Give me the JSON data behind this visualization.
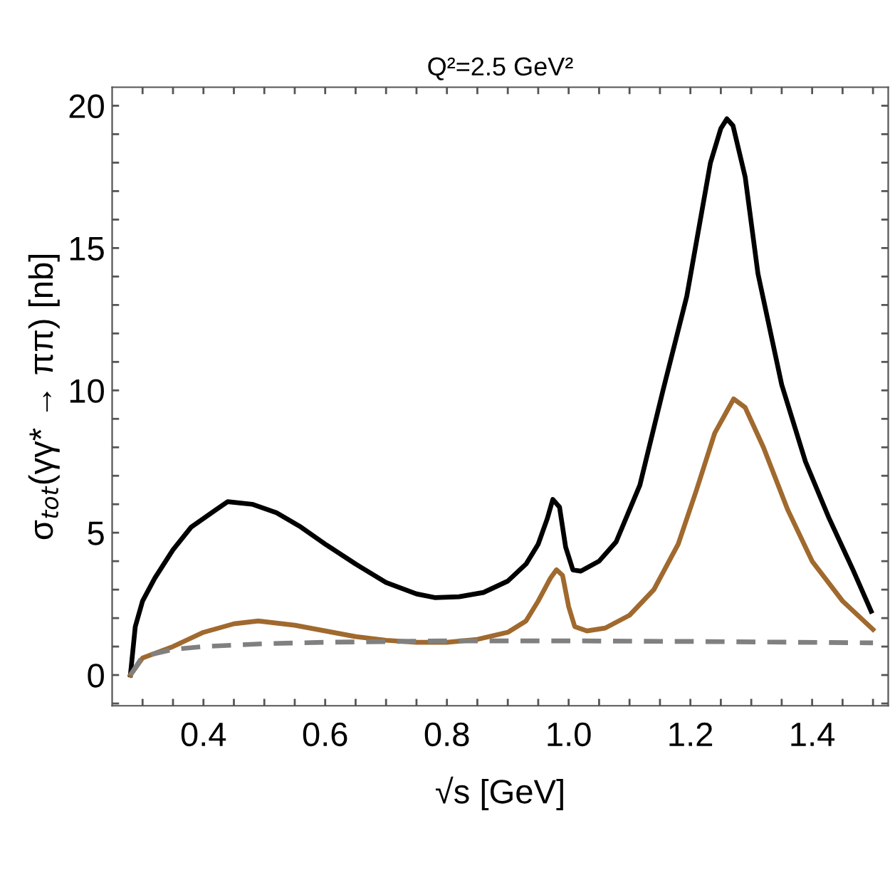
{
  "chart_data": {
    "type": "line",
    "title": "Q²=2.5 GeV²",
    "xlabel": "√s [GeV]",
    "ylabel": "σ$_{tot}$(γγ* → ππ) [nb]",
    "xlim": [
      0.25,
      1.525
    ],
    "ylim": [
      -1.08,
      20.65
    ],
    "xticks": [
      {
        "value": 0.3,
        "label": null
      },
      {
        "value": 0.35,
        "label": null
      },
      {
        "value": 0.4,
        "label": "0.4"
      },
      {
        "value": 0.45,
        "label": null
      },
      {
        "value": 0.5,
        "label": null
      },
      {
        "value": 0.55,
        "label": null
      },
      {
        "value": 0.6,
        "label": "0.6"
      },
      {
        "value": 0.65,
        "label": null
      },
      {
        "value": 0.7,
        "label": null
      },
      {
        "value": 0.75,
        "label": null
      },
      {
        "value": 0.8,
        "label": "0.8"
      },
      {
        "value": 0.85,
        "label": null
      },
      {
        "value": 0.9,
        "label": null
      },
      {
        "value": 0.95,
        "label": null
      },
      {
        "value": 1.0,
        "label": "1.0"
      },
      {
        "value": 1.05,
        "label": null
      },
      {
        "value": 1.1,
        "label": null
      },
      {
        "value": 1.15,
        "label": null
      },
      {
        "value": 1.2,
        "label": "1.2"
      },
      {
        "value": 1.25,
        "label": null
      },
      {
        "value": 1.3,
        "label": null
      },
      {
        "value": 1.35,
        "label": null
      },
      {
        "value": 1.4,
        "label": "1.4"
      },
      {
        "value": 1.45,
        "label": null
      },
      {
        "value": 1.5,
        "label": null
      }
    ],
    "yticks": [
      {
        "value": -1,
        "label": null
      },
      0,
      {
        "value": 1,
        "label": null
      },
      {
        "value": 2,
        "label": null
      },
      {
        "value": 3,
        "label": null
      },
      {
        "value": 4,
        "label": null
      },
      5,
      {
        "value": 6,
        "label": null
      },
      {
        "value": 7,
        "label": null
      },
      {
        "value": 8,
        "label": null
      },
      {
        "value": 9,
        "label": null
      },
      10,
      {
        "value": 11,
        "label": null
      },
      {
        "value": 12,
        "label": null
      },
      {
        "value": 13,
        "label": null
      },
      {
        "value": 14,
        "label": null
      },
      15,
      {
        "value": 16,
        "label": null
      },
      {
        "value": 17,
        "label": null
      },
      {
        "value": 18,
        "label": null
      },
      {
        "value": 19,
        "label": null
      },
      20
    ],
    "grid": false,
    "legend": false,
    "series": [
      {
        "color": "#000000",
        "line_style": "solid",
        "x": [
          0.28,
          0.288,
          0.3,
          0.32,
          0.35,
          0.38,
          0.42,
          0.44,
          0.48,
          0.52,
          0.56,
          0.6,
          0.65,
          0.7,
          0.75,
          0.78,
          0.82,
          0.86,
          0.9,
          0.93,
          0.95,
          0.965,
          0.974,
          0.985,
          0.995,
          1.007,
          1.02,
          1.05,
          1.078,
          1.117,
          1.155,
          1.194,
          1.233,
          1.25,
          1.26,
          1.27,
          1.29,
          1.311,
          1.35,
          1.389,
          1.428,
          1.467,
          1.497
        ],
        "values": [
          0,
          1.7,
          2.6,
          3.4,
          4.4,
          5.2,
          5.8,
          6.09,
          6.0,
          5.7,
          5.2,
          4.6,
          3.9,
          3.25,
          2.85,
          2.72,
          2.75,
          2.9,
          3.3,
          3.9,
          4.6,
          5.5,
          6.17,
          5.9,
          4.5,
          3.69,
          3.65,
          4.0,
          4.68,
          6.67,
          10.0,
          13.3,
          18.0,
          19.2,
          19.54,
          19.3,
          17.5,
          14.1,
          10.2,
          7.5,
          5.5,
          3.7,
          2.24
        ]
      },
      {
        "color": "#a0692e",
        "line_style": "solid",
        "x": [
          0.28,
          0.3,
          0.35,
          0.4,
          0.45,
          0.49,
          0.55,
          0.6,
          0.65,
          0.7,
          0.75,
          0.8,
          0.85,
          0.9,
          0.93,
          0.95,
          0.97,
          0.98,
          0.99,
          1.0,
          1.01,
          1.03,
          1.06,
          1.1,
          1.14,
          1.18,
          1.21,
          1.24,
          1.271,
          1.29,
          1.32,
          1.36,
          1.4,
          1.45,
          1.5
        ],
        "values": [
          0,
          0.6,
          1.0,
          1.5,
          1.8,
          1.9,
          1.75,
          1.55,
          1.35,
          1.22,
          1.15,
          1.15,
          1.25,
          1.5,
          1.9,
          2.6,
          3.4,
          3.7,
          3.5,
          2.4,
          1.7,
          1.55,
          1.65,
          2.1,
          3.0,
          4.6,
          6.5,
          8.5,
          9.7,
          9.4,
          8.0,
          5.8,
          4.0,
          2.6,
          1.6
        ]
      },
      {
        "color": "#808080",
        "line_style": "dashed",
        "x": [
          0.28,
          0.3,
          0.35,
          0.4,
          0.5,
          0.6,
          0.8,
          1.0,
          1.2,
          1.5
        ],
        "values": [
          0,
          0.65,
          0.9,
          1.0,
          1.1,
          1.15,
          1.2,
          1.2,
          1.18,
          1.13
        ]
      }
    ]
  }
}
